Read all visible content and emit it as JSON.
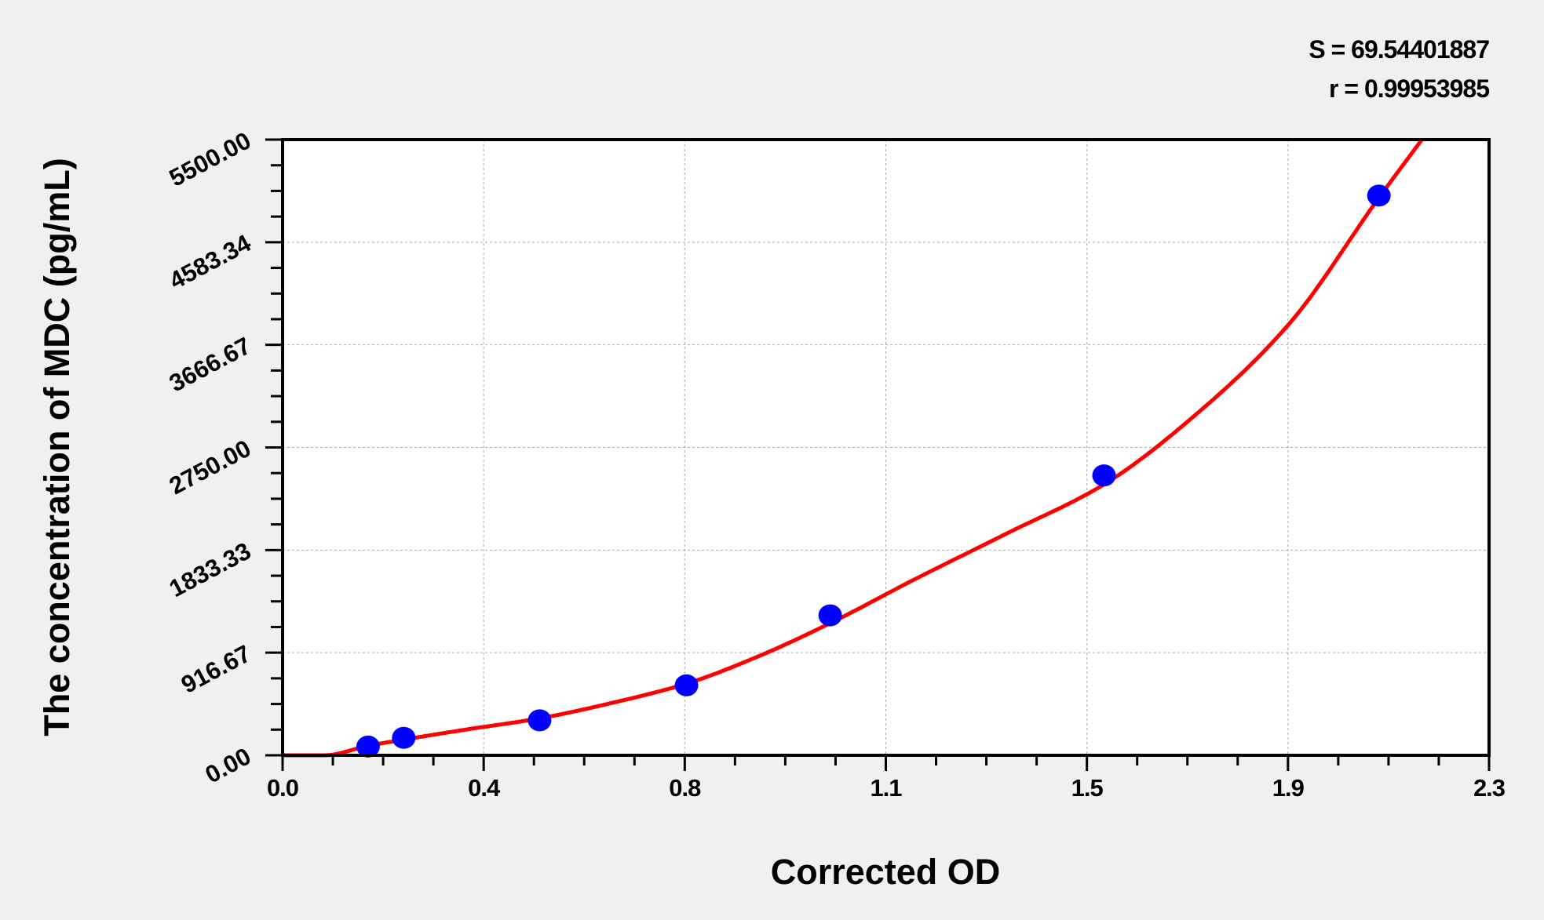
{
  "chart_data": {
    "type": "scatter",
    "xlabel": "Corrected OD",
    "ylabel": "The concentration of MDC (pg/mL)",
    "xlim": [
      0,
      2.3
    ],
    "ylim": [
      0,
      5500
    ],
    "x_ticks": [
      "0.0",
      "0.4",
      "0.8",
      "1.1",
      "1.5",
      "1.9",
      "2.3"
    ],
    "y_ticks": [
      "0.00",
      "916.67",
      "1833.33",
      "2750.00",
      "3666.67",
      "4583.34",
      "5500.00"
    ],
    "grid": true,
    "stats": {
      "s": "S = 69.54401887",
      "r": "r = 0.99953985"
    },
    "points": {
      "x": [
        0.163,
        0.231,
        0.49,
        0.77,
        1.044,
        1.566,
        2.09
      ],
      "y": [
        78.13,
        156.25,
        312.5,
        625,
        1250,
        2500,
        5000
      ]
    },
    "fit_curve": {
      "x": [
        0,
        0.08,
        0.163,
        0.231,
        0.35,
        0.49,
        0.63,
        0.77,
        0.9,
        1.044,
        1.2,
        1.38,
        1.566,
        1.75,
        1.92,
        2.09,
        2.172
      ],
      "y": [
        0,
        0,
        85,
        140,
        230,
        330,
        470,
        640,
        870,
        1180,
        1560,
        1980,
        2420,
        3080,
        3860,
        4980,
        5500
      ]
    },
    "colors": {
      "points": "#0000ff",
      "curve": "#ff0000",
      "background": "#f0f0f0",
      "plot": "#ffffff"
    }
  }
}
